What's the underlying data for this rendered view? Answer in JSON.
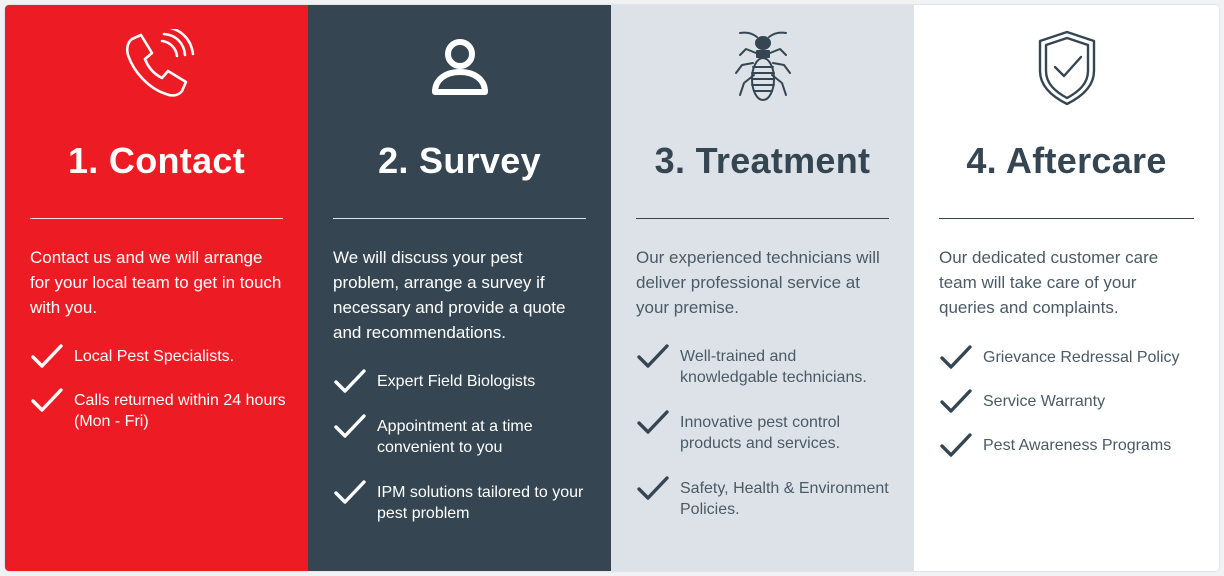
{
  "colors": {
    "contact_bg": "#ed1c24",
    "survey_bg": "#354652",
    "treatment_bg": "#dde2e8",
    "aftercare_bg": "#ffffff",
    "dark_text": "#354652"
  },
  "steps": [
    {
      "icon": "phone-icon",
      "title": "1. Contact",
      "description": "Contact us and we will arrange for your local team to get in touch with you.",
      "points": [
        "Local Pest Specialists.",
        "Calls returned within 24 hours (Mon - Fri)"
      ]
    },
    {
      "icon": "user-icon",
      "title": "2. Survey",
      "description": "We will discuss your pest problem, arrange a survey if necessary and provide a quote and recommendations.",
      "points": [
        "Expert Field Biologists",
        "Appointment at a time convenient to you",
        "IPM solutions tailored to your pest problem"
      ]
    },
    {
      "icon": "termite-icon",
      "title": "3. Treatment",
      "description": "Our experienced technicians will deliver professional service at your premise.",
      "points": [
        "Well-trained and knowledgable technicians.",
        "Innovative pest control products and services.",
        "Safety, Health & Environment Policies."
      ]
    },
    {
      "icon": "shield-check-icon",
      "title": "4. Aftercare",
      "description": "Our dedicated customer care team will take care of your queries and complaints.",
      "points": [
        "Grievance Redressal Policy",
        "Service Warranty",
        "Pest Awareness Programs"
      ]
    }
  ]
}
